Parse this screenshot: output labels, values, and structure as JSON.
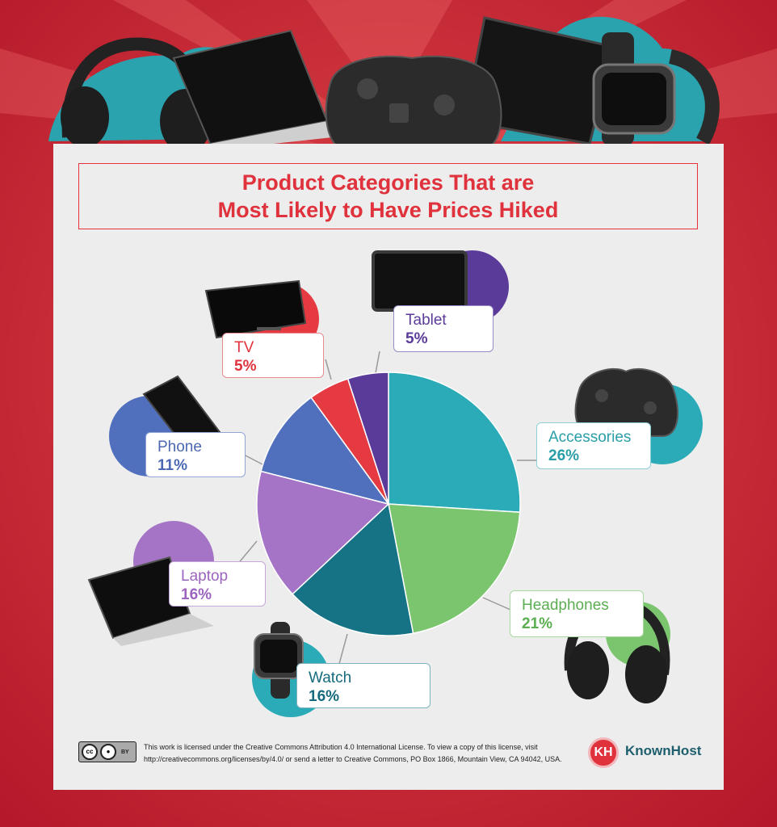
{
  "title": {
    "line1": "Product Categories That are",
    "line2": "Most Likely to Have Prices Hiked"
  },
  "chart_data": {
    "type": "pie",
    "title": "Product Categories That are Most Likely to Have Prices Hiked",
    "slices": [
      {
        "name": "Accessories",
        "value": 26,
        "label": "26%",
        "color": "#2aabb7"
      },
      {
        "name": "Headphones",
        "value": 21,
        "label": "21%",
        "color": "#7cc56f"
      },
      {
        "name": "Watch",
        "value": 16,
        "label": "16%",
        "color": "#167385"
      },
      {
        "name": "Laptop",
        "value": 16,
        "label": "16%",
        "color": "#a574c6"
      },
      {
        "name": "Phone",
        "value": 11,
        "label": "11%",
        "color": "#5070bd"
      },
      {
        "name": "TV",
        "value": 5,
        "label": "5%",
        "color": "#e63a42"
      },
      {
        "name": "Tablet",
        "value": 5,
        "label": "5%",
        "color": "#5b3b9a"
      }
    ],
    "text_colors": {
      "Accessories": "#2a9ea8",
      "Headphones": "#5cae52",
      "Watch": "#156a7c",
      "Laptop": "#9c64bf",
      "Phone": "#4c68b5",
      "TV": "#e0323c",
      "Tablet": "#5b3b9a"
    }
  },
  "footer": {
    "license_line1": "This work is licensed under the Creative Commons Attribution 4.0 International License. To view a copy of this license, visit",
    "license_line2": "http://creativecommons.org/licenses/by/4.0/ or send a letter to Creative Commons, PO Box 1866, Mountain View, CA 94042, USA.",
    "cc_icon_text": "cc",
    "cc_by": "BY",
    "brand_mark": "KH",
    "brand": "KnownHost"
  },
  "colors": {
    "brand_red": "#e0323c",
    "background_red": "#c21f2b",
    "panel": "#ededed",
    "teal_blob": "#2ba3af"
  },
  "icons": [
    "headphones-icon",
    "laptop-icon",
    "game-controller-icon",
    "tablet-icon",
    "smartwatch-icon",
    "tv-icon",
    "phone-icon",
    "cc-license-icon",
    "knownhost-logo"
  ]
}
